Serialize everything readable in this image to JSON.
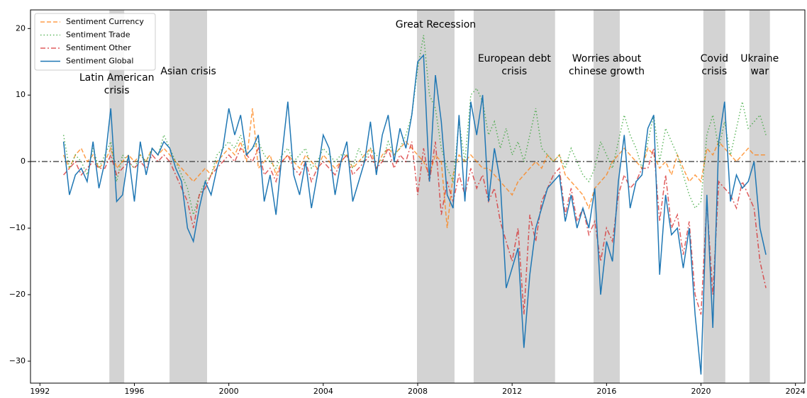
{
  "chart_data": {
    "type": "line",
    "x": [
      1993,
      1993.25,
      1993.5,
      1993.75,
      1994,
      1994.25,
      1994.5,
      1994.75,
      1995,
      1995.25,
      1995.5,
      1995.75,
      1996,
      1996.25,
      1996.5,
      1996.75,
      1997,
      1997.25,
      1997.5,
      1997.75,
      1998,
      1998.25,
      1998.5,
      1998.75,
      1999,
      1999.25,
      1999.5,
      1999.75,
      2000,
      2000.25,
      2000.5,
      2000.75,
      2001,
      2001.25,
      2001.5,
      2001.75,
      2002,
      2002.25,
      2002.5,
      2002.75,
      2003,
      2003.25,
      2003.5,
      2003.75,
      2004,
      2004.25,
      2004.5,
      2004.75,
      2005,
      2005.25,
      2005.5,
      2005.75,
      2006,
      2006.25,
      2006.5,
      2006.75,
      2007,
      2007.25,
      2007.5,
      2007.75,
      2008,
      2008.25,
      2008.5,
      2008.75,
      2009,
      2009.25,
      2009.5,
      2009.75,
      2010,
      2010.25,
      2010.5,
      2010.75,
      2011,
      2011.25,
      2011.5,
      2011.75,
      2012,
      2012.25,
      2012.5,
      2012.75,
      2013,
      2013.25,
      2013.5,
      2013.75,
      2014,
      2014.25,
      2014.5,
      2014.75,
      2015,
      2015.25,
      2015.5,
      2015.75,
      2016,
      2016.25,
      2016.5,
      2016.75,
      2017,
      2017.25,
      2017.5,
      2017.75,
      2018,
      2018.25,
      2018.5,
      2018.75,
      2019,
      2019.25,
      2019.5,
      2019.75,
      2020,
      2020.25,
      2020.5,
      2020.75,
      2021,
      2021.25,
      2021.5,
      2021.75,
      2022,
      2022.25,
      2022.5,
      2022.75
    ],
    "series": [
      {
        "name": "Sentiment Currency",
        "color": "#ff7f0e",
        "style": "dashed",
        "opacity": 0.75,
        "values": [
          1,
          -1,
          1,
          2,
          0,
          1,
          -1,
          0,
          2,
          -1,
          0,
          1,
          0,
          1,
          0,
          2,
          1,
          2,
          1,
          0,
          -1,
          -2,
          -3,
          -2,
          -1,
          -2,
          0,
          1,
          2,
          1,
          3,
          0,
          8,
          -1,
          0,
          1,
          -2,
          0,
          1,
          0,
          -1,
          1,
          0,
          -1,
          1,
          0,
          -1,
          0,
          1,
          -1,
          0,
          1,
          2,
          -1,
          1,
          2,
          1,
          2,
          3,
          2,
          1,
          0,
          -2,
          1,
          0,
          -10,
          -2,
          1,
          0,
          1,
          0,
          -1,
          -1,
          -2,
          -3,
          -4,
          -5,
          -3,
          -2,
          -1,
          0,
          -1,
          1,
          0,
          1,
          -2,
          -3,
          -4,
          -5,
          -7,
          -4,
          -3,
          -2,
          0,
          1,
          2,
          1,
          0,
          -1,
          2,
          1,
          -1,
          0,
          -2,
          1,
          -1,
          -3,
          -2,
          -3,
          2,
          1,
          3,
          2,
          1,
          0,
          1,
          2,
          1,
          1,
          1
        ]
      },
      {
        "name": "Sentiment Trade",
        "color": "#2ca02c",
        "style": "dotted",
        "opacity": 0.75,
        "values": [
          4,
          -1,
          1,
          0,
          -2,
          2,
          -1,
          1,
          3,
          -3,
          1,
          0,
          -1,
          1,
          0,
          2,
          1,
          4,
          2,
          0,
          -2,
          -4,
          -8,
          -5,
          -3,
          -2,
          1,
          2,
          3,
          2,
          4,
          1,
          2,
          3,
          1,
          0,
          -1,
          1,
          2,
          0,
          1,
          2,
          -1,
          0,
          2,
          1,
          0,
          1,
          1,
          -1,
          2,
          0,
          2,
          1,
          0,
          3,
          1,
          2,
          4,
          7,
          14,
          19,
          10,
          8,
          2,
          -1,
          -3,
          6,
          0,
          10,
          11,
          9,
          4,
          6,
          2,
          5,
          1,
          3,
          0,
          4,
          8,
          2,
          1,
          0,
          1,
          -1,
          2,
          0,
          -2,
          -3,
          -1,
          3,
          1,
          -1,
          3,
          7,
          4,
          2,
          -1,
          3,
          7,
          0,
          5,
          3,
          1,
          -2,
          -5,
          -7,
          -6,
          4,
          7,
          2,
          6,
          1,
          5,
          9,
          5,
          6,
          7,
          4
        ]
      },
      {
        "name": "Sentiment Other",
        "color": "#d62728",
        "style": "dashdot",
        "opacity": 0.75,
        "values": [
          -2,
          -1,
          0,
          -2,
          -1,
          0,
          -1,
          -1,
          1,
          -2,
          -1,
          0,
          -1,
          0,
          -1,
          1,
          0,
          1,
          0,
          -2,
          -4,
          -6,
          -10,
          -5,
          -4,
          -2,
          -1,
          0,
          1,
          0,
          2,
          1,
          0,
          2,
          -2,
          -1,
          -3,
          0,
          1,
          -1,
          -2,
          0,
          -3,
          -1,
          0,
          -1,
          -2,
          0,
          1,
          -2,
          -1,
          0,
          1,
          -1,
          0,
          2,
          -1,
          1,
          0,
          3,
          -5,
          2,
          -3,
          3,
          -8,
          -3,
          -6,
          -2,
          -5,
          -1,
          -4,
          -2,
          -6,
          -4,
          -9,
          -12,
          -15,
          -10,
          -23,
          -8,
          -12,
          -6,
          -4,
          -2,
          -1,
          -8,
          -4,
          -9,
          -7,
          -11,
          -9,
          -15,
          -10,
          -12,
          -5,
          -2,
          -4,
          -3,
          -1,
          -1,
          2,
          -9,
          -2,
          -10,
          -8,
          -14,
          -9,
          -20,
          -23,
          -6,
          -20,
          -3,
          -4,
          -5,
          -7,
          -3,
          -5,
          -7,
          -15,
          -19
        ]
      },
      {
        "name": "Sentiment Global",
        "color": "#1f77b4",
        "style": "solid",
        "opacity": 1,
        "values": [
          3,
          -5,
          -2,
          -1,
          -3,
          3,
          -4,
          0,
          8,
          -6,
          -5,
          1,
          -6,
          3,
          -2,
          2,
          1,
          3,
          2,
          -1,
          -3,
          -10,
          -12,
          -7,
          -3,
          -5,
          -1,
          2,
          8,
          4,
          7,
          1,
          2,
          4,
          -6,
          -2,
          -8,
          1,
          9,
          -2,
          -5,
          0,
          -7,
          -2,
          4,
          2,
          -5,
          0,
          3,
          -6,
          -3,
          0,
          6,
          -2,
          4,
          7,
          0,
          5,
          2,
          7,
          15,
          16,
          -3,
          13,
          6,
          -5,
          -7,
          7,
          -6,
          9,
          4,
          10,
          -6,
          2,
          -3,
          -19,
          -16,
          -13,
          -28,
          -17,
          -10,
          -7,
          -4,
          -3,
          -2,
          -9,
          -5,
          -10,
          -7,
          -10,
          -4,
          -20,
          -12,
          -15,
          -3,
          4,
          -7,
          -3,
          -2,
          5,
          7,
          -17,
          -5,
          -11,
          -10,
          -16,
          -10,
          -23,
          -32,
          -5,
          -25,
          3,
          9,
          -6,
          -2,
          -4,
          -3,
          0,
          -10,
          -14
        ]
      }
    ],
    "xlim": [
      1991.6,
      2024.4
    ],
    "ylim": [
      -33.3,
      22.8
    ],
    "xticks": [
      1992,
      1996,
      2000,
      2004,
      2008,
      2012,
      2016,
      2020,
      2024
    ],
    "yticks": [
      {
        "value": -30,
        "label": "−30"
      },
      {
        "value": -20,
        "label": "−20"
      },
      {
        "value": -10,
        "label": "−10"
      },
      0,
      10,
      20
    ],
    "hline": 0,
    "legend": "upper left",
    "shaded_periods": [
      {
        "start": 1994.94,
        "end": 1995.57,
        "label": [
          "Latin American",
          "crisis"
        ]
      },
      {
        "start": 1997.49,
        "end": 1999.08,
        "label": [
          "Asian crisis"
        ]
      },
      {
        "start": 2007.97,
        "end": 2009.56,
        "label": [
          "Great Recession"
        ]
      },
      {
        "start": 2010.37,
        "end": 2013.82,
        "label": [
          "European debt",
          "crisis"
        ]
      },
      {
        "start": 2015.45,
        "end": 2016.56,
        "label": [
          "Worries about",
          "chinese growth"
        ]
      },
      {
        "start": 2020.1,
        "end": 2021.03,
        "label": [
          "Covid",
          "crisis"
        ]
      },
      {
        "start": 2022.05,
        "end": 2022.92,
        "label": [
          "Ukraine",
          "war"
        ]
      }
    ]
  }
}
